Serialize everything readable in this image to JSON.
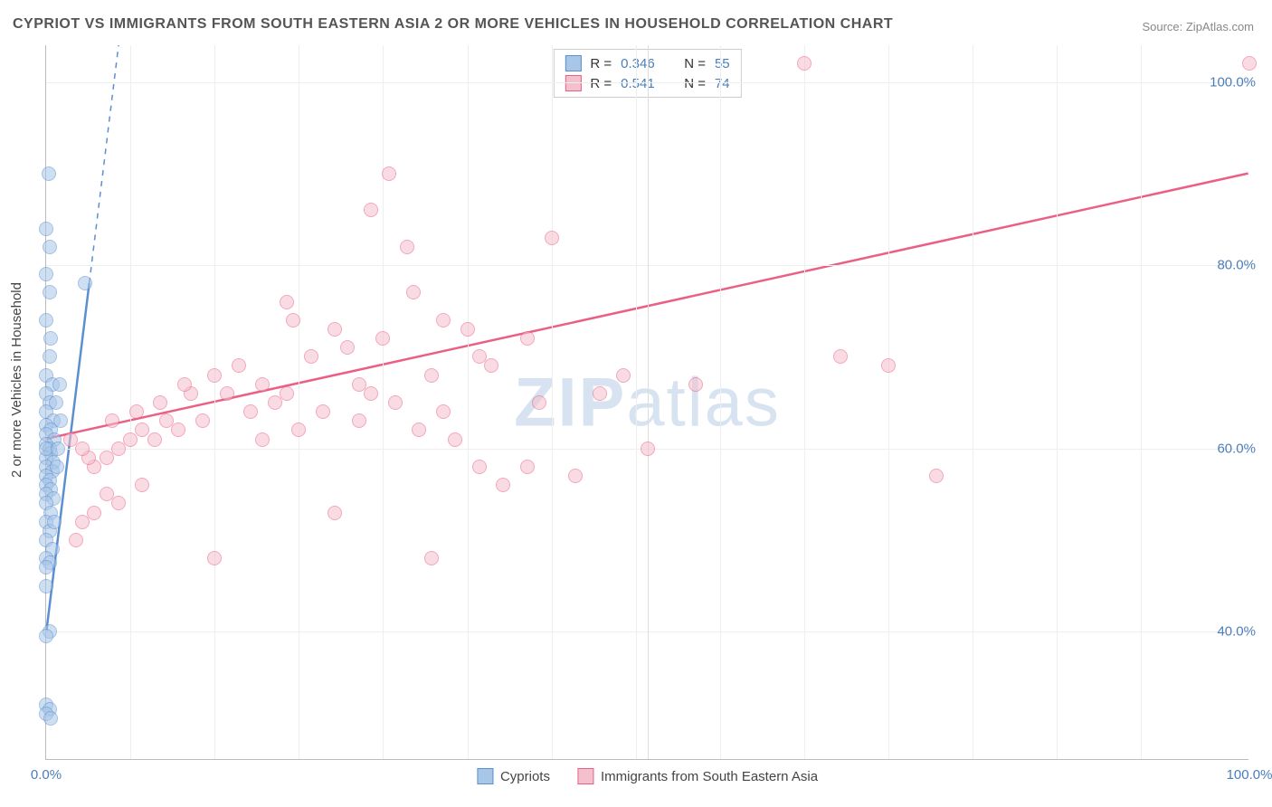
{
  "title": "CYPRIOT VS IMMIGRANTS FROM SOUTH EASTERN ASIA 2 OR MORE VEHICLES IN HOUSEHOLD CORRELATION CHART",
  "source": "Source: ZipAtlas.com",
  "watermark_a": "ZIP",
  "watermark_b": "atlas",
  "chart": {
    "y_axis_title": "2 or more Vehicles in Household",
    "x_min": 0,
    "x_max": 100,
    "y_min": 26,
    "y_max": 104,
    "y_ticks": [
      40,
      60,
      80,
      100
    ],
    "y_tick_labels": [
      "40.0%",
      "60.0%",
      "80.0%",
      "100.0%"
    ],
    "x_ticks": [
      0,
      50,
      100
    ],
    "x_tick_labels": [
      "0.0%",
      "",
      "100.0%"
    ],
    "x_minor_ticks": [
      7,
      14,
      21,
      28,
      35,
      42,
      49,
      56,
      63,
      70,
      77,
      84,
      91
    ],
    "grid_color": "#eeeeee",
    "axis_color": "#bbbbbb",
    "tick_label_color": "#4a7ebb",
    "tick_label_fontsize": 15,
    "background_color": "#ffffff",
    "point_radius": 8,
    "point_opacity": 0.55,
    "series": [
      {
        "name": "Cypriots",
        "fill": "#a8c6e8",
        "stroke": "#5b8fd0",
        "trend": {
          "x1": 0,
          "y1": 40,
          "x2": 6,
          "y2": 104,
          "dash_extend": true,
          "width": 2.5
        },
        "trend_solid_end": 78,
        "R": "0.346",
        "N": "55",
        "points": [
          [
            0.2,
            90
          ],
          [
            0.0,
            84
          ],
          [
            0.3,
            82
          ],
          [
            0.0,
            79
          ],
          [
            3.2,
            78
          ],
          [
            0.3,
            77
          ],
          [
            0.0,
            74
          ],
          [
            0.4,
            72
          ],
          [
            0.3,
            70
          ],
          [
            0.0,
            68
          ],
          [
            0.5,
            67
          ],
          [
            0.0,
            66
          ],
          [
            0.3,
            65
          ],
          [
            0.0,
            64
          ],
          [
            0.6,
            63
          ],
          [
            0.0,
            62.5
          ],
          [
            0.4,
            62
          ],
          [
            0.0,
            61.5
          ],
          [
            0.7,
            61
          ],
          [
            0.0,
            60.5
          ],
          [
            0.3,
            60
          ],
          [
            0.4,
            59.5
          ],
          [
            0.0,
            59
          ],
          [
            0.6,
            58.5
          ],
          [
            0.0,
            58
          ],
          [
            0.5,
            57.5
          ],
          [
            0.0,
            57
          ],
          [
            0.3,
            56.5
          ],
          [
            0.0,
            56
          ],
          [
            0.4,
            55.5
          ],
          [
            0.0,
            55
          ],
          [
            0.6,
            54.5
          ],
          [
            0.0,
            54
          ],
          [
            0.4,
            53
          ],
          [
            0.0,
            52
          ],
          [
            0.3,
            51
          ],
          [
            0.0,
            50
          ],
          [
            0.5,
            49
          ],
          [
            0.0,
            48
          ],
          [
            0.3,
            47.5
          ],
          [
            0.0,
            47
          ],
          [
            0.0,
            45
          ],
          [
            0.3,
            40
          ],
          [
            0.0,
            39.5
          ],
          [
            0.0,
            32
          ],
          [
            0.3,
            31.5
          ],
          [
            0.0,
            31
          ],
          [
            0.4,
            30.5
          ],
          [
            0.0,
            60
          ],
          [
            0.8,
            65
          ],
          [
            1.2,
            63
          ],
          [
            0.9,
            58
          ],
          [
            1.1,
            67
          ],
          [
            0.7,
            52
          ],
          [
            1.0,
            60
          ]
        ]
      },
      {
        "name": "Immigrants from South Eastern Asia",
        "fill": "#f5c0cd",
        "stroke": "#ec5f85",
        "trend": {
          "x1": 0,
          "y1": 61,
          "x2": 100,
          "y2": 90,
          "dash_extend": false,
          "width": 2.5
        },
        "R": "0.541",
        "N": "74",
        "points": [
          [
            63,
            102
          ],
          [
            100,
            102
          ],
          [
            28.5,
            90
          ],
          [
            27,
            86
          ],
          [
            42,
            83
          ],
          [
            30,
            82
          ],
          [
            30.5,
            77
          ],
          [
            66,
            70
          ],
          [
            70,
            69
          ],
          [
            33,
            74
          ],
          [
            20,
            76
          ],
          [
            35,
            73
          ],
          [
            20.5,
            74
          ],
          [
            24,
            73
          ],
          [
            28,
            72
          ],
          [
            40,
            72
          ],
          [
            36,
            70
          ],
          [
            37,
            69
          ],
          [
            48,
            68
          ],
          [
            54,
            67
          ],
          [
            32,
            68
          ],
          [
            26,
            67
          ],
          [
            27,
            66
          ],
          [
            20,
            66
          ],
          [
            18,
            67
          ],
          [
            15,
            66
          ],
          [
            12,
            66
          ],
          [
            10,
            63
          ],
          [
            8,
            62
          ],
          [
            7,
            61
          ],
          [
            6,
            60
          ],
          [
            5,
            59
          ],
          [
            4,
            58
          ],
          [
            3.5,
            59
          ],
          [
            3,
            60
          ],
          [
            14,
            68
          ],
          [
            16,
            69
          ],
          [
            22,
            70
          ],
          [
            25,
            71
          ],
          [
            19,
            65
          ],
          [
            17,
            64
          ],
          [
            13,
            63
          ],
          [
            11,
            62
          ],
          [
            9,
            61
          ],
          [
            23,
            64
          ],
          [
            29,
            65
          ],
          [
            31,
            62
          ],
          [
            34,
            61
          ],
          [
            36,
            58
          ],
          [
            40,
            58
          ],
          [
            44,
            57
          ],
          [
            50,
            60
          ],
          [
            38,
            56
          ],
          [
            32,
            48
          ],
          [
            24,
            53
          ],
          [
            14,
            48
          ],
          [
            6,
            54
          ],
          [
            8,
            56
          ],
          [
            5,
            55
          ],
          [
            4,
            53
          ],
          [
            3,
            52
          ],
          [
            2.5,
            50
          ],
          [
            18,
            61
          ],
          [
            21,
            62
          ],
          [
            26,
            63
          ],
          [
            33,
            64
          ],
          [
            41,
            65
          ],
          [
            46,
            66
          ],
          [
            74,
            57
          ],
          [
            5.5,
            63
          ],
          [
            7.5,
            64
          ],
          [
            9.5,
            65
          ],
          [
            11.5,
            67
          ],
          [
            2,
            61
          ]
        ]
      }
    ],
    "stats_box": {
      "label_R": "R =",
      "label_N": "N ="
    },
    "bottom_legend": {
      "items": [
        "Cypriots",
        "Immigrants from South Eastern Asia"
      ]
    }
  }
}
